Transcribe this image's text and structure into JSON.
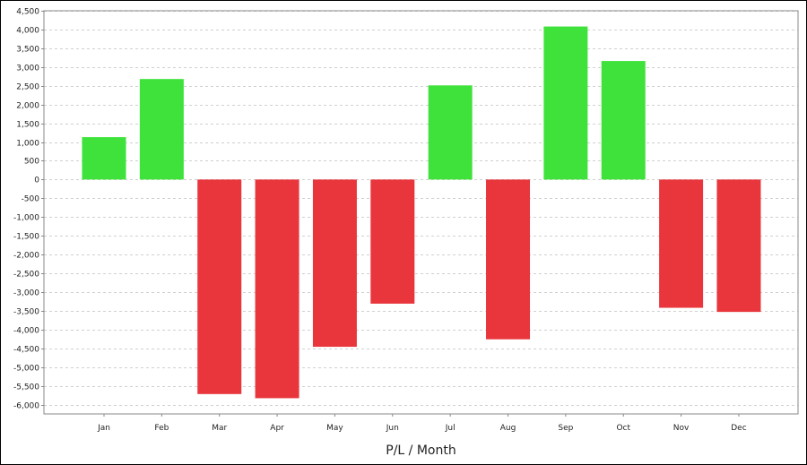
{
  "chart_data": {
    "type": "bar",
    "title": "",
    "xlabel": "P/L / Month",
    "ylabel": "",
    "categories": [
      "Jan",
      "Feb",
      "Mar",
      "Apr",
      "May",
      "Jun",
      "Jul",
      "Aug",
      "Sep",
      "Oct",
      "Nov",
      "Dec"
    ],
    "values": [
      1130,
      2680,
      -5720,
      -5830,
      -4460,
      -3310,
      2510,
      -4260,
      4080,
      3160,
      -3420,
      -3530
    ],
    "ylim": [
      -6250,
      4500
    ],
    "yticks": [
      4500,
      4000,
      3500,
      3000,
      2500,
      2000,
      1500,
      1000,
      500,
      0,
      -500,
      -1000,
      -1500,
      -2000,
      -2500,
      -3000,
      -3500,
      -4000,
      -4500,
      -5000,
      -5500,
      -6000
    ],
    "ytick_labels": [
      "4,500",
      "4,000",
      "3,500",
      "3,000",
      "2,500",
      "2,000",
      "1,500",
      "1,000",
      "500",
      "0",
      "-500",
      "-1,000",
      "-1,500",
      "-2,000",
      "-2,500",
      "-3,000",
      "-3,500",
      "-4,000",
      "-4,500",
      "-5,000",
      "-5,500",
      "-6,000"
    ],
    "grid": true,
    "legend": "none",
    "colors": {
      "positive": "#3ee23a",
      "negative": "#e8363c",
      "grid": "#d0d0d0",
      "axis": "#888888"
    }
  }
}
